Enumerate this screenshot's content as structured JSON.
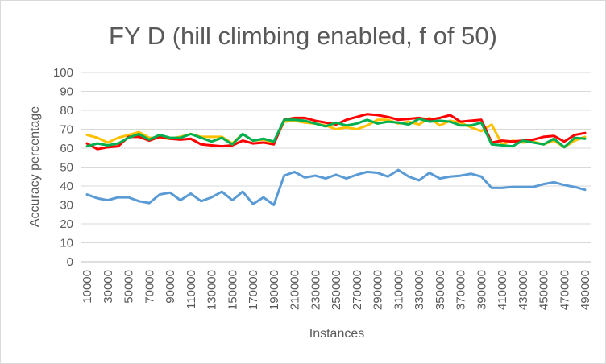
{
  "chart_data": {
    "type": "line",
    "title": "FY D (hill climbing enabled, f of 50)",
    "xlabel": "Instances",
    "ylabel": "Accuracy percentage",
    "ylim": [
      0,
      100
    ],
    "yticks": [
      0,
      10,
      20,
      30,
      40,
      50,
      60,
      70,
      80,
      90,
      100
    ],
    "grid": true,
    "legend": "none",
    "x": [
      10000,
      20000,
      30000,
      40000,
      50000,
      60000,
      70000,
      80000,
      90000,
      100000,
      110000,
      120000,
      130000,
      140000,
      150000,
      160000,
      170000,
      180000,
      190000,
      200000,
      210000,
      220000,
      230000,
      240000,
      250000,
      260000,
      270000,
      280000,
      290000,
      300000,
      310000,
      320000,
      330000,
      340000,
      350000,
      360000,
      370000,
      380000,
      390000,
      400000,
      410000,
      420000,
      430000,
      440000,
      450000,
      460000,
      470000,
      480000,
      490000
    ],
    "xtick_labels": [
      "10000",
      "30000",
      "50000",
      "70000",
      "90000",
      "110000",
      "130000",
      "150000",
      "170000",
      "190000",
      "210000",
      "230000",
      "250000",
      "270000",
      "290000",
      "310000",
      "330000",
      "350000",
      "370000",
      "390000",
      "410000",
      "430000",
      "450000",
      "470000",
      "490000"
    ],
    "series": [
      {
        "color": "#5b9bd5",
        "values": [
          35.5,
          33.5,
          32.5,
          34,
          34,
          32,
          31,
          35.5,
          36.5,
          32.5,
          36,
          32,
          34,
          37,
          32.5,
          37,
          30.5,
          34,
          30,
          45.5,
          47.5,
          44.5,
          45.5,
          44,
          46,
          44,
          46,
          47.5,
          47,
          45,
          48.5,
          45,
          43,
          47,
          44,
          45,
          45.5,
          46.5,
          45,
          39,
          39,
          39.5,
          39.5,
          39.5,
          41,
          42,
          40.5,
          39.5,
          38
        ]
      },
      {
        "color": "#ffc000",
        "values": [
          67,
          65.5,
          63,
          65.5,
          67,
          68.5,
          65.5,
          65.5,
          65,
          66,
          67.5,
          66,
          66,
          66,
          62.5,
          67.5,
          64,
          64.5,
          63,
          74,
          74.5,
          73.5,
          73,
          72,
          70,
          71,
          70,
          72,
          75,
          75,
          73,
          74,
          72.5,
          76,
          72,
          74.5,
          73.5,
          71,
          69,
          72.5,
          62,
          64,
          63,
          63.5,
          62,
          64,
          60.5,
          64,
          66
        ]
      },
      {
        "color": "#ff0000",
        "values": [
          62.5,
          59.5,
          60.5,
          61,
          66,
          66,
          64,
          66,
          65,
          64.5,
          65,
          62,
          61.5,
          61,
          61.5,
          64,
          62.5,
          63,
          62,
          75,
          76,
          76,
          74.5,
          73.5,
          72.5,
          75,
          76.5,
          78,
          77.5,
          76.5,
          75,
          75.5,
          76,
          75,
          76,
          77.5,
          74,
          74.5,
          75,
          63,
          64,
          63.5,
          64,
          64.5,
          66,
          66.5,
          63.5,
          67,
          68
        ]
      },
      {
        "color": "#00b050",
        "values": [
          61,
          62.5,
          61.5,
          62.5,
          65.5,
          67.5,
          64.5,
          67,
          65.5,
          65.5,
          67.5,
          65.5,
          63.5,
          65.5,
          62,
          67.5,
          64,
          65,
          63.5,
          75,
          75,
          74.5,
          73,
          71.5,
          73.5,
          72,
          73,
          75,
          73,
          74,
          73.5,
          72.5,
          75.5,
          74,
          74.5,
          74,
          72,
          72,
          73.5,
          62,
          61.5,
          61,
          64,
          63,
          62,
          65,
          60.5,
          65.5,
          65
        ]
      }
    ]
  }
}
